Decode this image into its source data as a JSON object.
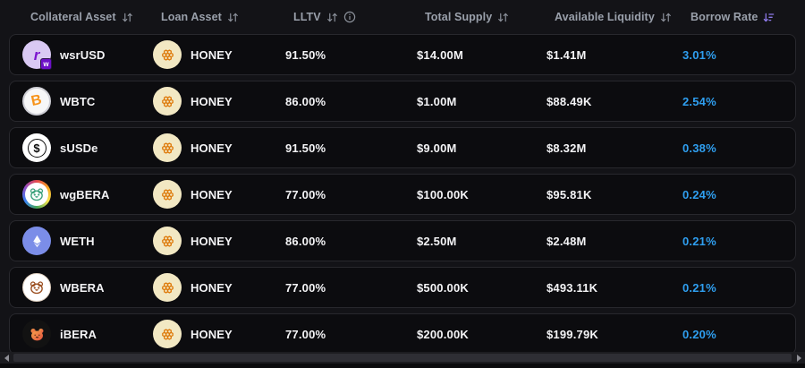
{
  "colors": {
    "borrow_rate_blue": "#2f9ff0",
    "active_sort_purple": "#8d79e8",
    "honey_orange": "#de7b0d",
    "row_background": "#0c0c0f",
    "page_background": "#131317"
  },
  "header": {
    "columns": [
      {
        "label": "Collateral Asset",
        "sort": "inactive"
      },
      {
        "label": "Loan Asset",
        "sort": "inactive"
      },
      {
        "label": "LLTV",
        "sort": "inactive",
        "info": true
      },
      {
        "label": "Total Supply",
        "sort": "inactive"
      },
      {
        "label": "Available Liquidity",
        "sort": "inactive"
      },
      {
        "label": "Borrow Rate",
        "sort": "descending"
      }
    ]
  },
  "rows": [
    {
      "collateral": {
        "name": "wsrUSD",
        "icon": "wsrusd-icon"
      },
      "loan": {
        "name": "HONEY",
        "icon": "honey-icon"
      },
      "lltv": "91.50%",
      "total_supply": "$14.00M",
      "available_liquidity": "$1.41M",
      "borrow_rate": "3.01%"
    },
    {
      "collateral": {
        "name": "WBTC",
        "icon": "wbtc-icon"
      },
      "loan": {
        "name": "HONEY",
        "icon": "honey-icon"
      },
      "lltv": "86.00%",
      "total_supply": "$1.00M",
      "available_liquidity": "$88.49K",
      "borrow_rate": "2.54%"
    },
    {
      "collateral": {
        "name": "sUSDe",
        "icon": "susde-icon"
      },
      "loan": {
        "name": "HONEY",
        "icon": "honey-icon"
      },
      "lltv": "91.50%",
      "total_supply": "$9.00M",
      "available_liquidity": "$8.32M",
      "borrow_rate": "0.38%"
    },
    {
      "collateral": {
        "name": "wgBERA",
        "icon": "wgbera-icon"
      },
      "loan": {
        "name": "HONEY",
        "icon": "honey-icon"
      },
      "lltv": "77.00%",
      "total_supply": "$100.00K",
      "available_liquidity": "$95.81K",
      "borrow_rate": "0.24%"
    },
    {
      "collateral": {
        "name": "WETH",
        "icon": "weth-icon"
      },
      "loan": {
        "name": "HONEY",
        "icon": "honey-icon"
      },
      "lltv": "86.00%",
      "total_supply": "$2.50M",
      "available_liquidity": "$2.48M",
      "borrow_rate": "0.21%"
    },
    {
      "collateral": {
        "name": "WBERA",
        "icon": "wbera-icon"
      },
      "loan": {
        "name": "HONEY",
        "icon": "honey-icon"
      },
      "lltv": "77.00%",
      "total_supply": "$500.00K",
      "available_liquidity": "$493.11K",
      "borrow_rate": "0.21%"
    },
    {
      "collateral": {
        "name": "iBERA",
        "icon": "ibera-icon"
      },
      "loan": {
        "name": "HONEY",
        "icon": "honey-icon"
      },
      "lltv": "77.00%",
      "total_supply": "$200.00K",
      "available_liquidity": "$199.79K",
      "borrow_rate": "0.20%"
    }
  ]
}
